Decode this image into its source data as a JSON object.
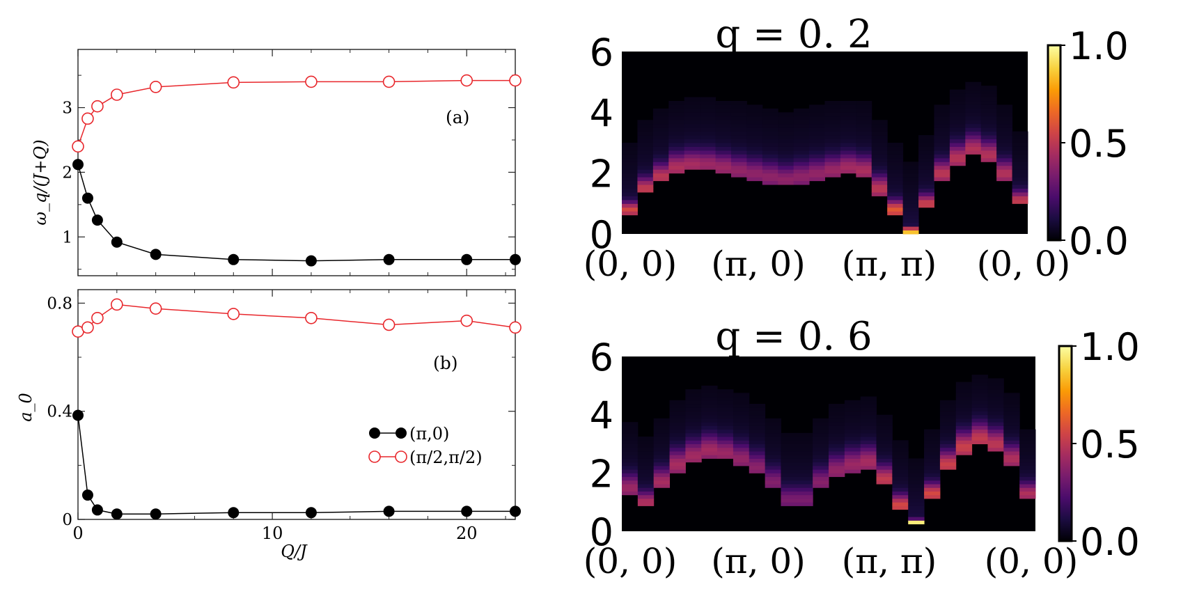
{
  "colors": {
    "pi0_series": "#000000",
    "pi2_series": "#e8262b",
    "heatmap_bg": "#000004",
    "colormap": [
      "#000004",
      "#1b0c41",
      "#4a0c6b",
      "#781c6d",
      "#a52c60",
      "#cf4446",
      "#ed6925",
      "#fb9b06",
      "#f7d13d",
      "#fcffa4"
    ]
  },
  "chart_data": [
    {
      "type": "line",
      "panel_label": "(a)",
      "xlabel": "",
      "ylabel": "ω_q/(J+Q)",
      "xlim": [
        0,
        22.5
      ],
      "ylim": [
        0.4,
        3.9
      ],
      "xticks": [
        0,
        10,
        20
      ],
      "xtick_labels": [
        "",
        "",
        ""
      ],
      "yticks": [
        1,
        2,
        3
      ],
      "ytick_labels": [
        "1",
        "2",
        "3"
      ],
      "x": [
        0,
        0.5,
        1,
        2,
        4,
        8,
        12,
        16,
        20,
        22.5
      ],
      "series": [
        {
          "name": "(π,0)",
          "marker": "filled",
          "values": [
            2.12,
            1.6,
            1.26,
            0.92,
            0.73,
            0.65,
            0.63,
            0.65,
            0.65,
            0.65
          ]
        },
        {
          "name": "(π/2,π/2)",
          "marker": "open",
          "values": [
            2.4,
            2.83,
            3.02,
            3.2,
            3.32,
            3.39,
            3.4,
            3.4,
            3.42,
            3.42
          ]
        }
      ]
    },
    {
      "type": "line",
      "panel_label": "(b)",
      "xlabel": "Q/J",
      "ylabel": "a_0",
      "xlim": [
        0,
        22.5
      ],
      "ylim": [
        0,
        0.85
      ],
      "xticks": [
        0,
        10,
        20
      ],
      "xtick_labels": [
        "0",
        "10",
        "20"
      ],
      "yticks": [
        0,
        0.4,
        0.8
      ],
      "ytick_labels": [
        "0",
        "0.4",
        "0.8"
      ],
      "legend_position": "lower-right",
      "x": [
        0,
        0.5,
        1,
        2,
        4,
        8,
        12,
        16,
        20,
        22.5
      ],
      "series": [
        {
          "name": "(π,0)",
          "marker": "filled",
          "values": [
            0.385,
            0.09,
            0.035,
            0.02,
            0.02,
            0.025,
            0.025,
            0.03,
            0.03,
            0.03
          ]
        },
        {
          "name": "(π/2,π/2)",
          "marker": "open",
          "values": [
            0.695,
            0.71,
            0.745,
            0.795,
            0.78,
            0.76,
            0.745,
            0.72,
            0.735,
            0.71
          ]
        }
      ]
    },
    {
      "type": "heatmap",
      "title": "q = 0. 2",
      "ylim": [
        0,
        6
      ],
      "yticks": [
        0,
        2,
        4,
        6
      ],
      "ytick_labels": [
        "0",
        "2",
        "4",
        "6"
      ],
      "xtick_labels": [
        "(0, 0)",
        "(π, 0)",
        "(π, π)",
        "(0, 0)"
      ],
      "colorbar": {
        "range": [
          0,
          1
        ],
        "ticks": [
          "0.0",
          "0.5",
          "1.0"
        ]
      },
      "ridge_energy": [
        0.8,
        1.5,
        1.9,
        2.2,
        2.3,
        2.3,
        2.2,
        2.1,
        2.0,
        1.9,
        1.8,
        1.9,
        2.0,
        2.1,
        2.2,
        2.1,
        1.5,
        0.8,
        0.1,
        1.0,
        2.0,
        2.5,
        2.8,
        2.6,
        2.0,
        1.1
      ],
      "ridge_intensity": [
        0.45,
        0.4,
        0.38,
        0.35,
        0.33,
        0.3,
        0.3,
        0.28,
        0.27,
        0.27,
        0.27,
        0.27,
        0.28,
        0.3,
        0.32,
        0.34,
        0.38,
        0.5,
        0.85,
        0.42,
        0.38,
        0.37,
        0.36,
        0.36,
        0.36,
        0.4
      ],
      "ridge_width": [
        0.25,
        0.35,
        0.4,
        0.45,
        0.45,
        0.45,
        0.45,
        0.45,
        0.45,
        0.45,
        0.45,
        0.45,
        0.45,
        0.45,
        0.45,
        0.45,
        0.4,
        0.3,
        0.1,
        0.3,
        0.4,
        0.45,
        0.45,
        0.45,
        0.4,
        0.3
      ]
    },
    {
      "type": "heatmap",
      "title": "q = 0. 6",
      "ylim": [
        0,
        6
      ],
      "yticks": [
        0,
        2,
        4,
        6
      ],
      "ytick_labels": [
        "0",
        "2",
        "4",
        "6"
      ],
      "xtick_labels": [
        "(0, 0)",
        "(π, 0)",
        "(π, π)",
        "(0, 0)"
      ],
      "colorbar": {
        "range": [
          0,
          1
        ],
        "ticks": [
          "0.0",
          "0.5",
          "1.0"
        ]
      },
      "ridge_energy": [
        1.5,
        1.0,
        1.7,
        2.3,
        2.6,
        2.8,
        2.7,
        2.5,
        2.2,
        1.7,
        1.1,
        1.1,
        1.7,
        2.1,
        2.3,
        2.4,
        1.8,
        0.9,
        0.3,
        1.3,
        2.3,
        2.9,
        3.2,
        3.0,
        2.5,
        1.3
      ],
      "ridge_intensity": [
        0.3,
        0.35,
        0.33,
        0.33,
        0.32,
        0.32,
        0.3,
        0.28,
        0.26,
        0.24,
        0.22,
        0.22,
        0.25,
        0.28,
        0.3,
        0.33,
        0.4,
        0.45,
        0.85,
        0.45,
        0.42,
        0.42,
        0.4,
        0.38,
        0.35,
        0.35
      ],
      "ridge_width": [
        0.45,
        0.35,
        0.45,
        0.5,
        0.5,
        0.5,
        0.5,
        0.5,
        0.5,
        0.45,
        0.4,
        0.4,
        0.45,
        0.5,
        0.5,
        0.5,
        0.45,
        0.35,
        0.1,
        0.35,
        0.45,
        0.5,
        0.5,
        0.5,
        0.45,
        0.35
      ]
    }
  ]
}
